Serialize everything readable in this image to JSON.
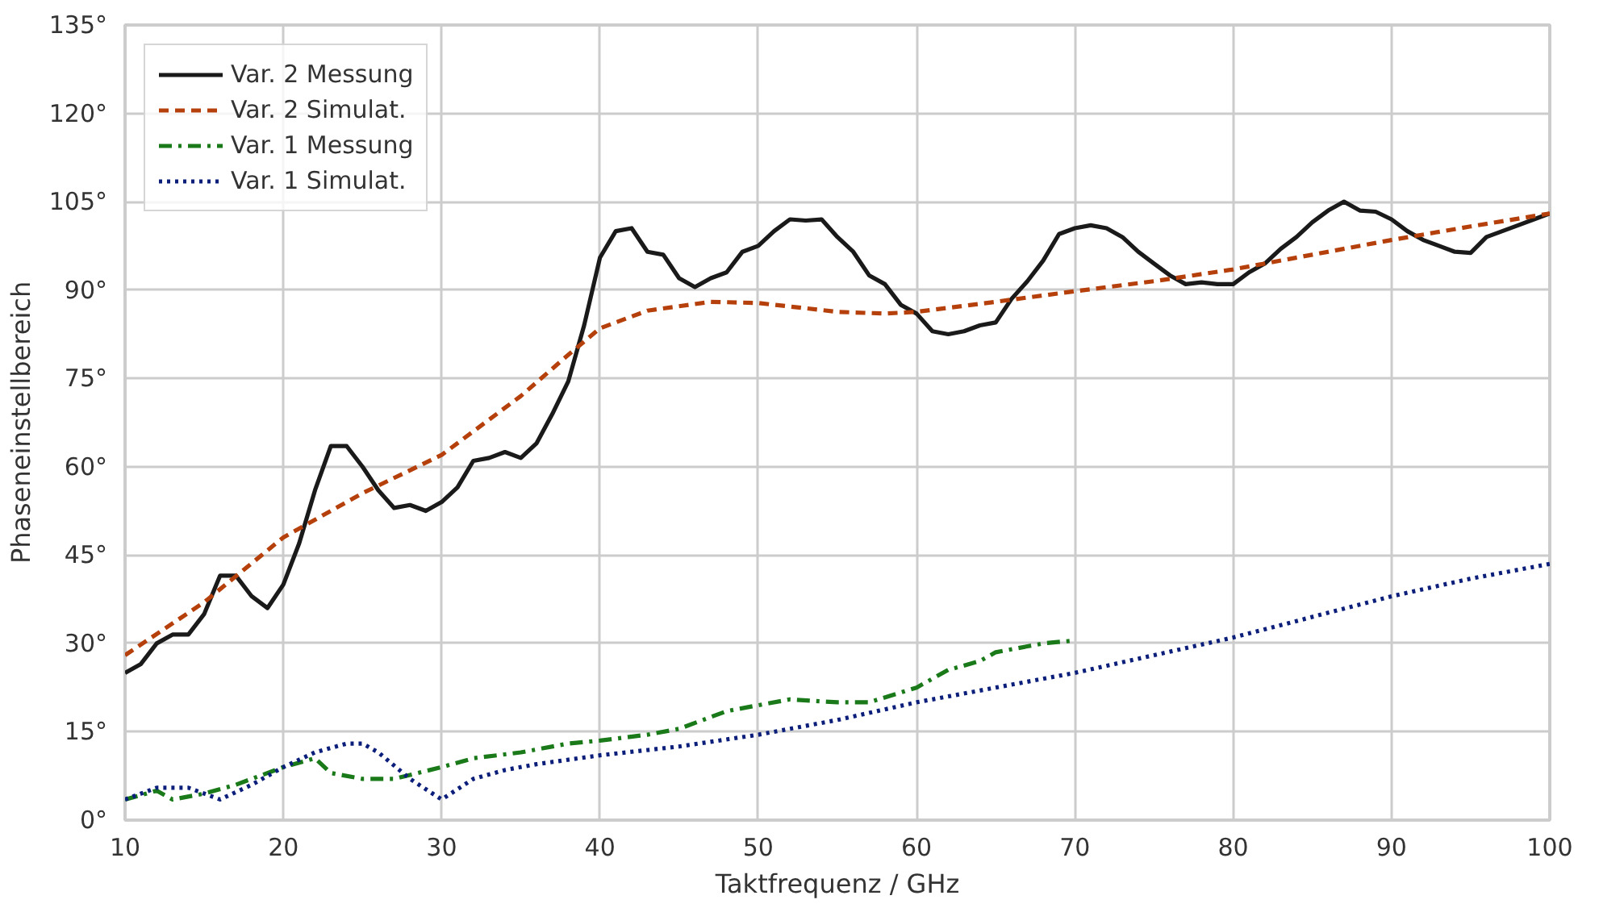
{
  "chart_data": {
    "type": "line",
    "xlabel": "Taktfrequenz / GHz",
    "ylabel": "Phaseneinstellbereich",
    "xlim": [
      10,
      100
    ],
    "xticks": [
      10,
      20,
      30,
      40,
      50,
      60,
      70,
      80,
      90,
      100
    ],
    "ylim": [
      0,
      135
    ],
    "yticks": [
      {
        "value": 0,
        "label": "0°"
      },
      {
        "value": 15,
        "label": "15°"
      },
      {
        "value": 30,
        "label": "30°"
      },
      {
        "value": 45,
        "label": "45°"
      },
      {
        "value": 60,
        "label": "60°"
      },
      {
        "value": 75,
        "label": "75°"
      },
      {
        "value": 90,
        "label": "90°"
      },
      {
        "value": 105,
        "label": "105°"
      },
      {
        "value": 120,
        "label": "120°"
      },
      {
        "value": 135,
        "label": "135°"
      }
    ],
    "grid": true,
    "legend": "top left",
    "marker": "none",
    "series": [
      {
        "name": "Var. 2 Messung",
        "color": "#1a1a1a",
        "line_style": "solid",
        "x": [
          10,
          11,
          12,
          13,
          14,
          15,
          16,
          17,
          18,
          19,
          20,
          21,
          22,
          23,
          24,
          25,
          26,
          27,
          28,
          29,
          30,
          31,
          32,
          33,
          34,
          35,
          36,
          37,
          38,
          39,
          40,
          41,
          42,
          43,
          44,
          45,
          46,
          47,
          48,
          49,
          50,
          51,
          52,
          53,
          54,
          55,
          56,
          57,
          58,
          59,
          60,
          61,
          62,
          63,
          64,
          65,
          66,
          67,
          68,
          69,
          70,
          71,
          72,
          73,
          74,
          75,
          76,
          77,
          78,
          79,
          80,
          81,
          82,
          83,
          84,
          85,
          86,
          87,
          88,
          89,
          90,
          91,
          92,
          93,
          94,
          95,
          96,
          97,
          98,
          99,
          100
        ],
        "values": [
          25,
          26.5,
          30,
          31.5,
          31.5,
          35,
          41.5,
          41.5,
          38,
          36,
          40,
          47,
          56,
          63.5,
          63.5,
          60,
          56,
          53,
          53.5,
          52.5,
          54,
          56.5,
          61,
          61.5,
          62.5,
          61.5,
          64,
          69,
          74.5,
          84,
          95.5,
          100,
          100.5,
          96.5,
          96,
          92,
          90.5,
          92,
          93,
          96.5,
          97.5,
          100,
          102,
          101.8,
          102,
          99,
          96.5,
          92.5,
          91,
          87.5,
          86,
          83,
          82.5,
          83,
          84,
          84.5,
          88.5,
          91.5,
          95,
          99.5,
          100.5,
          101,
          100.5,
          99,
          96.5,
          94.5,
          92.5,
          91,
          91.3,
          91,
          91,
          93,
          94.5,
          97,
          99,
          101.5,
          103.5,
          105,
          103.5,
          103.3,
          102,
          100,
          98.5,
          97.5,
          96.5,
          96.3,
          99,
          100,
          101,
          102,
          103
        ]
      },
      {
        "name": "Var. 2 Simulat.",
        "color": "#b5400b",
        "line_style": "dashed",
        "x": [
          10,
          15,
          20,
          25,
          30,
          35,
          38,
          40,
          43,
          47,
          50,
          55,
          58,
          60,
          65,
          70,
          75,
          80,
          85,
          90,
          95,
          100
        ],
        "values": [
          28,
          37,
          48,
          55.5,
          62,
          72,
          79,
          83.5,
          86.5,
          88,
          87.8,
          86.3,
          86,
          86.3,
          88,
          89.8,
          91.5,
          93.5,
          96,
          98.5,
          100.8,
          103
        ]
      },
      {
        "name": "Var. 1 Messung",
        "color": "#1a7a1a",
        "line_style": "dashdot",
        "x": [
          10,
          12,
          13,
          15,
          17,
          20,
          22,
          23,
          25,
          27,
          30,
          32,
          35,
          38,
          40,
          43,
          45,
          48,
          50,
          52,
          55,
          57,
          60,
          62,
          64,
          65,
          67,
          68,
          70
        ],
        "values": [
          3.5,
          5,
          3.5,
          4.5,
          6,
          9,
          10.5,
          8,
          7,
          7,
          9,
          10.5,
          11.5,
          13,
          13.5,
          14.5,
          15.5,
          18.5,
          19.5,
          20.5,
          20,
          20,
          22.5,
          25.5,
          27,
          28.5,
          29.5,
          30,
          30.5
        ]
      },
      {
        "name": "Var. 1 Simulat.",
        "color": "#0b1f7a",
        "line_style": "dotted",
        "x": [
          10,
          12,
          14,
          16,
          18,
          20,
          22,
          24,
          25,
          26,
          28,
          30,
          32,
          34,
          36,
          40,
          45,
          50,
          55,
          60,
          65,
          70,
          75,
          80,
          85,
          90,
          95,
          100
        ],
        "values": [
          3.5,
          5.5,
          5.5,
          3.5,
          6,
          9,
          11.5,
          13,
          13,
          11.5,
          7,
          3.5,
          7,
          8.5,
          9.5,
          11,
          12.5,
          14.5,
          17,
          20,
          22.5,
          25,
          28,
          31,
          34.5,
          38,
          41,
          43.5
        ]
      }
    ]
  }
}
